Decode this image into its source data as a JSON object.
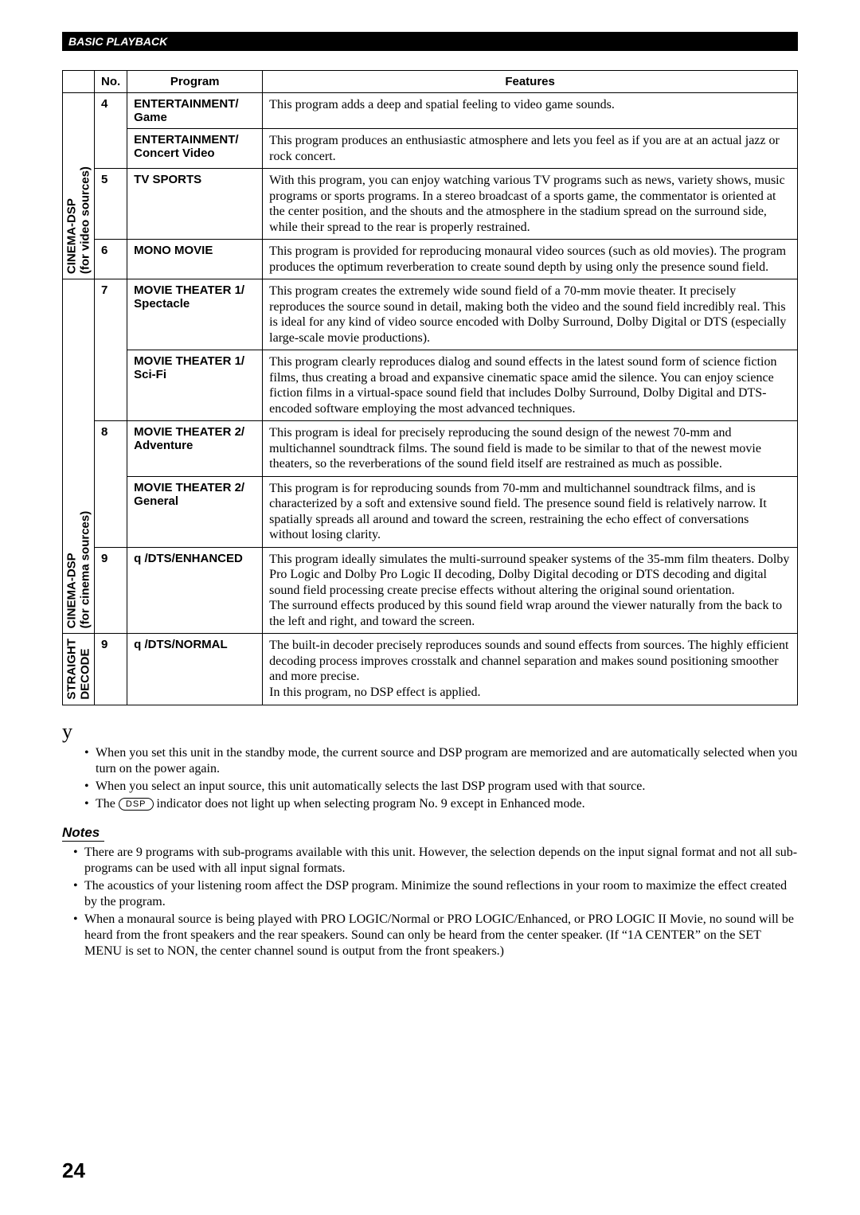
{
  "header": {
    "section": "BASIC PLAYBACK"
  },
  "table": {
    "head": {
      "no": "No.",
      "program": "Program",
      "features": "Features"
    },
    "groups": [
      {
        "label": "CINEMA-DSP\n(for video sources)",
        "rows": [
          {
            "no": "4",
            "program": "ENTERTAINMENT/\nGame",
            "features": "This program adds a deep and spatial feeling to video game sounds."
          },
          {
            "no": "",
            "program": "ENTERTAINMENT/\nConcert Video",
            "features": "This program produces an enthusiastic atmosphere and lets you feel as if you are at an actual jazz or rock concert."
          },
          {
            "no": "5",
            "program": "TV SPORTS",
            "features": "With this program, you can enjoy watching various TV programs such as news, variety shows, music programs or sports programs. In a stereo broadcast of a sports game, the commentator is oriented at the center position, and the shouts and the atmosphere in the stadium spread on the surround side, while their spread to the rear is properly restrained."
          },
          {
            "no": "6",
            "program": "MONO MOVIE",
            "features": "This program is provided for reproducing monaural video sources (such as old movies). The program produces the optimum reverberation to create sound depth by using only the presence sound field."
          }
        ]
      },
      {
        "label": "CINEMA-DSP\n(for cinema sources)",
        "rows": [
          {
            "no": "7",
            "program": "MOVIE THEATER 1/\nSpectacle",
            "features": "This program creates the extremely wide sound field of a 70-mm movie theater. It precisely reproduces the source sound in detail, making both the video and the sound field incredibly real. This is ideal for any kind of video source encoded with Dolby Surround, Dolby Digital or DTS (especially large-scale movie productions)."
          },
          {
            "no": "",
            "program": "MOVIE THEATER 1/\nSci-Fi",
            "features": "This program clearly reproduces dialog and sound effects in the latest sound form of science fiction films, thus creating a broad and expansive cinematic space amid the silence. You can enjoy science fiction films in a virtual-space sound field that includes Dolby Surround, Dolby Digital and DTS-encoded software employing the most advanced techniques."
          },
          {
            "no": "8",
            "program": "MOVIE THEATER 2/\nAdventure",
            "features": "This program is ideal for precisely reproducing the sound design of the newest 70-mm and multichannel soundtrack films. The sound field is made to be similar to that of the newest movie theaters, so the reverberations of the sound field itself are restrained as much as possible."
          },
          {
            "no": "",
            "program": "MOVIE THEATER 2/\nGeneral",
            "features": "This program is for reproducing sounds from 70-mm and multichannel soundtrack films, and is characterized by a soft and extensive sound field. The presence sound field is relatively narrow. It spatially spreads all around and toward the screen, restraining the echo effect of conversations without losing clarity."
          },
          {
            "no": "9",
            "program": "q /DTS/ENHANCED",
            "features": "This program ideally simulates the multi-surround speaker systems of the 35-mm film theaters. Dolby Pro Logic and Dolby Pro Logic II decoding, Dolby Digital decoding or DTS decoding and digital sound field processing create precise effects without altering the original sound orientation.\nThe surround effects produced by this sound field wrap around the viewer naturally from the back to the left and right, and toward the screen."
          }
        ]
      },
      {
        "label": "STRAIGHT\nDECODE",
        "rows": [
          {
            "no": "9",
            "program": "q /DTS/NORMAL",
            "features": "The built-in decoder precisely reproduces sounds and sound effects from sources. The highly efficient decoding process improves crosstalk and channel separation and makes sound positioning smoother and more precise.\nIn this program, no DSP effect is applied."
          }
        ]
      }
    ]
  },
  "tips_marker": "y",
  "tips": [
    "When you set this unit in the standby mode, the current source and DSP program are memorized and are automatically selected when you turn on the power again.",
    "When you select an input source, this unit automatically selects the last DSP program used with that source."
  ],
  "dsp_line": {
    "prefix": "The ",
    "pill": "DSP",
    "suffix": " indicator does not light up when selecting program No. 9 except in Enhanced mode."
  },
  "notes_heading": "Notes",
  "notes": [
    "There are 9 programs with sub-programs available with this unit. However, the selection depends on the input signal format and not all sub-programs can be used with all input signal formats.",
    "The acoustics of your listening room affect the DSP program. Minimize the sound reflections in your room to maximize the effect created by the program.",
    "When a monaural source is being played with PRO LOGIC/Normal or PRO LOGIC/Enhanced, or PRO LOGIC II Movie, no sound will be heard from the front speakers and the rear speakers. Sound can only be heard from the center speaker. (If “1A CENTER” on the SET MENU is set to NON, the center channel sound is output from the front speakers.)"
  ],
  "page_number": "24"
}
